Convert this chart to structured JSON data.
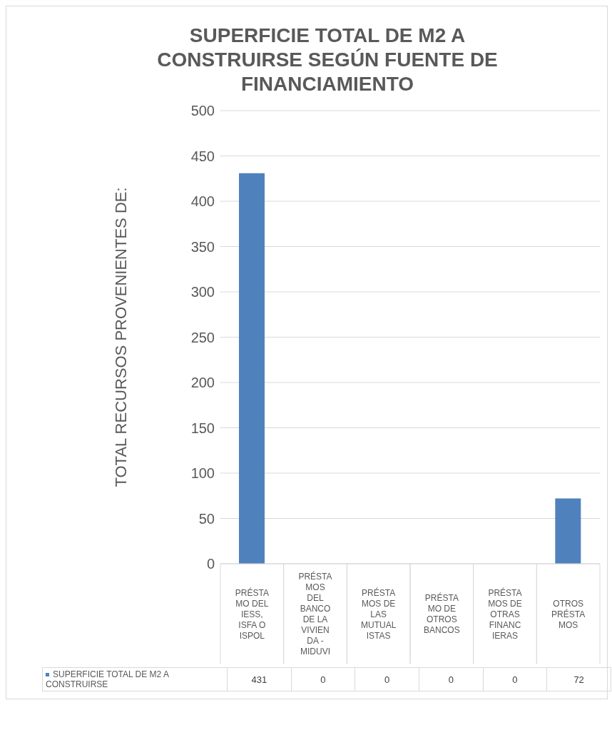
{
  "chart_data": {
    "type": "bar",
    "title": "SUPERFICIE TOTAL DE M2 A CONSTRUIRSE SEGÚN FUENTE DE FINANCIAMIENTO",
    "ylabel": "TOTAL RECURSOS PROVENIENTES DE:",
    "categories": [
      "PRÉSTAMO DEL IESS, ISFA O ISPOL",
      "PRÉSTAMOS DEL BANCO DE LA VIVIENDA - MIDUVI",
      "PRÉSTAMOS DE LAS MUTUALISTAS",
      "PRÉSTAMO DE OTROS BANCOS",
      "PRÉSTAMOS DE OTRAS FINANCIERAS",
      "OTROS PRÉSTAMOS"
    ],
    "series": [
      {
        "name": "SUPERFICIE TOTAL DE M2 A CONSTRUIRSE",
        "color": "#4f81bd",
        "values": [
          431,
          0,
          0,
          0,
          0,
          72
        ]
      }
    ],
    "ylim": [
      0,
      500
    ],
    "yticks": [
      0,
      50,
      100,
      150,
      200,
      250,
      300,
      350,
      400,
      450,
      500
    ],
    "grid": "y",
    "legend": "bottom",
    "data_labels": true
  }
}
